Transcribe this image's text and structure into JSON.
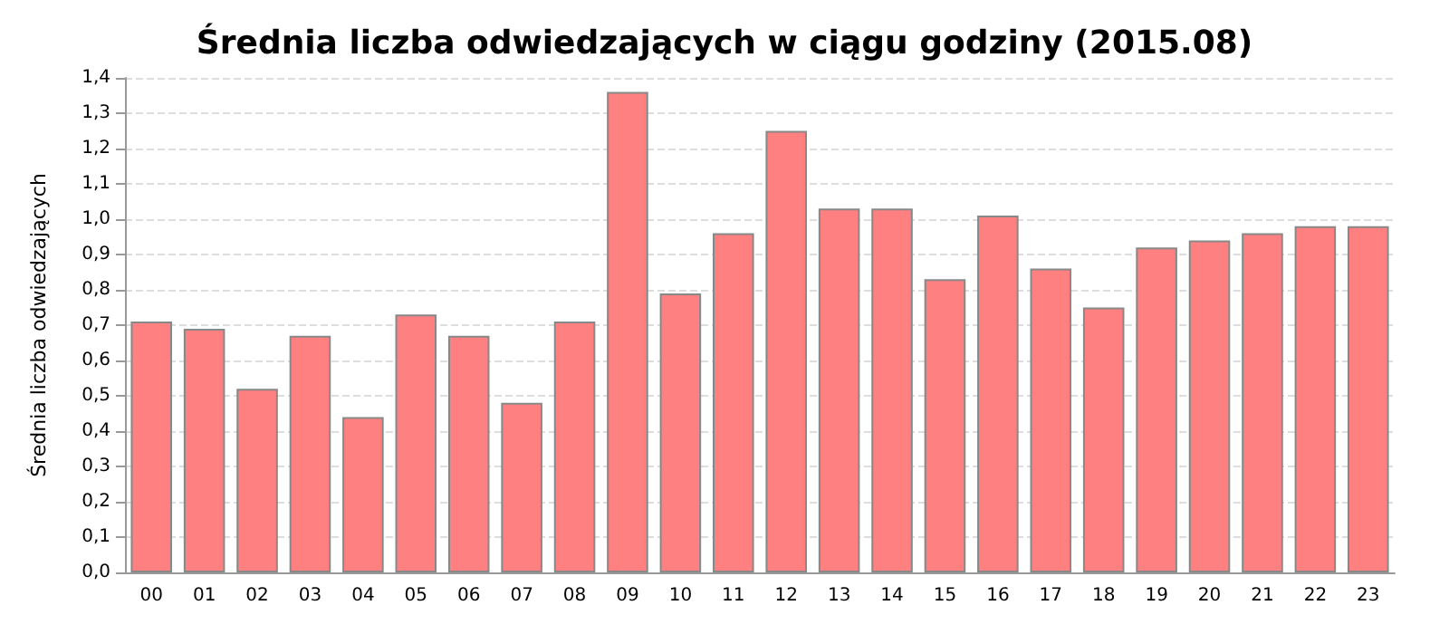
{
  "chart_data": {
    "type": "bar",
    "title": "Średnia liczba odwiedzających w ciągu godziny (2015.08)",
    "ylabel": "Średnia liczba odwiedzających",
    "categories": [
      "00",
      "01",
      "02",
      "03",
      "04",
      "05",
      "06",
      "07",
      "08",
      "09",
      "10",
      "11",
      "12",
      "13",
      "14",
      "15",
      "16",
      "17",
      "18",
      "19",
      "20",
      "21",
      "22",
      "23"
    ],
    "values": [
      0.71,
      0.69,
      0.52,
      0.67,
      0.44,
      0.73,
      0.67,
      0.48,
      0.71,
      1.36,
      0.79,
      0.96,
      1.25,
      1.03,
      1.03,
      0.83,
      1.01,
      0.86,
      0.75,
      0.92,
      0.94,
      0.96,
      0.98,
      0.98
    ],
    "color": "#ff8080",
    "ylim": [
      0,
      1.4
    ],
    "yticks": [
      {
        "value": 0,
        "label": "0,0"
      },
      {
        "value": 0.1,
        "label": "0,1"
      },
      {
        "value": 0.2,
        "label": "0,2"
      },
      {
        "value": 0.3,
        "label": "0,3"
      },
      {
        "value": 0.4,
        "label": "0,4"
      },
      {
        "value": 0.5,
        "label": "0,5"
      },
      {
        "value": 0.6,
        "label": "0,6"
      },
      {
        "value": 0.7,
        "label": "0,7"
      },
      {
        "value": 0.8,
        "label": "0,8"
      },
      {
        "value": 0.9,
        "label": "0,9"
      },
      {
        "value": 1.0,
        "label": "1,0"
      },
      {
        "value": 1.1,
        "label": "1,1"
      },
      {
        "value": 1.2,
        "label": "1,2"
      },
      {
        "value": 1.3,
        "label": "1,3"
      },
      {
        "value": 1.4,
        "label": "1,4"
      }
    ],
    "grid": "y"
  }
}
